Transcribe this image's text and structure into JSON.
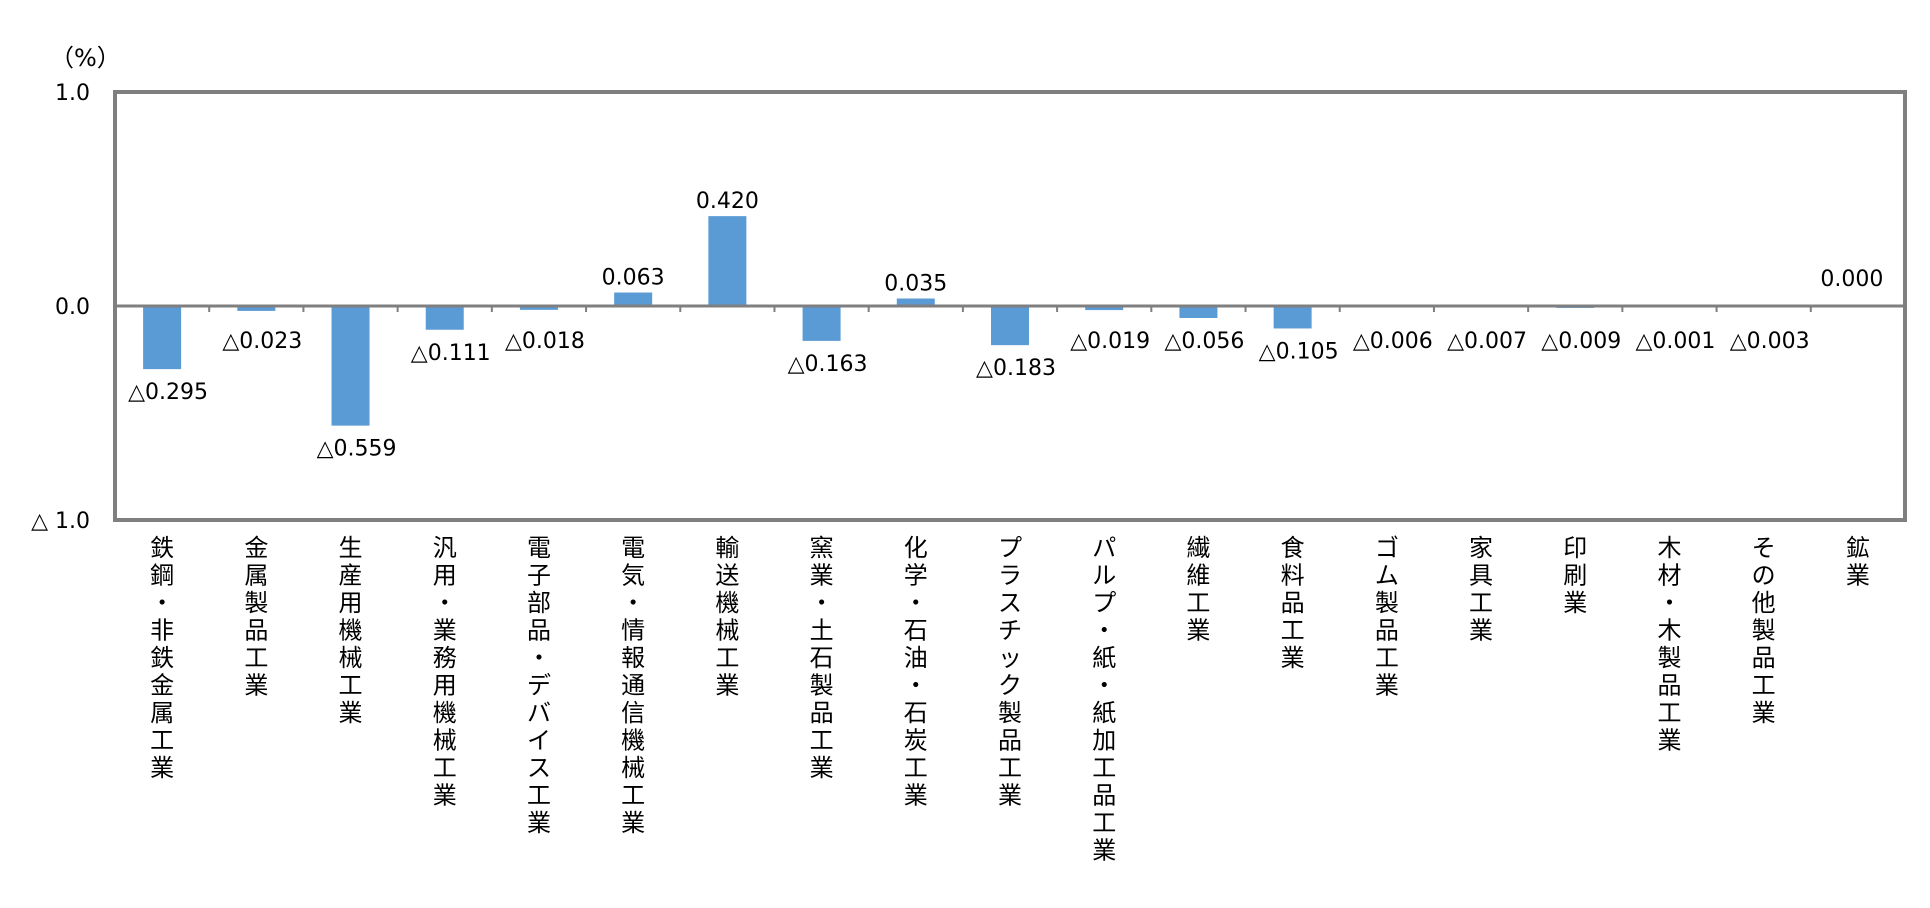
{
  "chart_data": {
    "type": "bar",
    "unit_label": "（%）",
    "ylim": [
      -1.0,
      1.0
    ],
    "y_ticks": [
      {
        "value": 1.0,
        "label": "1.0"
      },
      {
        "value": 0.0,
        "label": "0.0"
      },
      {
        "value": -1.0,
        "label": "△ 1.0"
      }
    ],
    "grid": false,
    "bar_color": "#5B9BD5",
    "frame_color": "#7F7F7F",
    "categories": [
      "鉄鋼・非鉄金属工業",
      "金属製品工業",
      "生産用機械工業",
      "汎用・業務用機械工業",
      "電子部品・デバイス工業",
      "電気・情報通信機械工業",
      "輸送機械工業",
      "窯業・土石製品工業",
      "化学・石油・石炭工業",
      "プラスチック製品工業",
      "パルプ・紙・紙加工品工業",
      "繊維工業",
      "食料品工業",
      "ゴム製品工業",
      "家具工業",
      "印刷業",
      "木材・木製品工業",
      "その他製品工業",
      "鉱業"
    ],
    "values": [
      -0.295,
      -0.023,
      -0.559,
      -0.111,
      -0.018,
      0.063,
      0.42,
      -0.163,
      0.035,
      -0.183,
      -0.019,
      -0.056,
      -0.105,
      -0.006,
      -0.007,
      -0.009,
      -0.001,
      -0.003,
      0.0
    ],
    "data_labels": [
      "△0.295",
      "△0.023",
      "△0.559",
      "△0.111",
      "△0.018",
      "0.063",
      "0.420",
      "△0.163",
      "0.035",
      "△0.183",
      "△0.019",
      "△0.056",
      "△0.105",
      "△0.006",
      "△0.007",
      "△0.009",
      "△0.001",
      "△0.003",
      "0.000"
    ]
  }
}
